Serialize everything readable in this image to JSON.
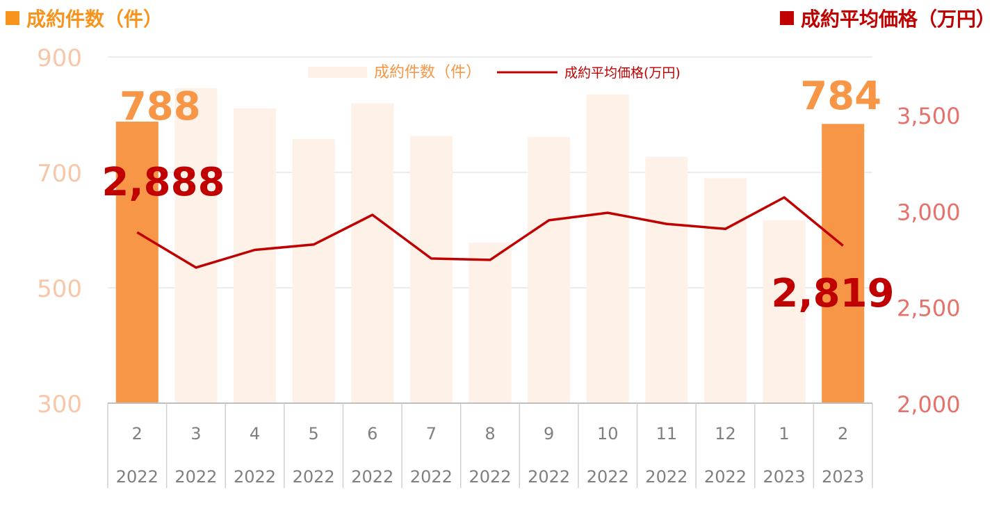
{
  "header": {
    "left_title": "成約件数（件）",
    "right_title": "成約平均価格（万円）"
  },
  "colors": {
    "bar_highlight": "#F79646",
    "bar_muted": "#FDF1E8",
    "line": "#C00000",
    "left_axis": "#F8C6A8",
    "right_axis": "#E8706A",
    "left_title": "#F7941D",
    "right_title": "#C00000",
    "right_square": "#C00000",
    "value_bar_label": "#F79646",
    "value_line_label": "#C00000",
    "category_text": "#7F7F7F",
    "grid": "#D9D9D9"
  },
  "chart_data": {
    "type": "bar+line",
    "categories": [
      "2",
      "3",
      "4",
      "5",
      "6",
      "7",
      "8",
      "9",
      "10",
      "11",
      "12",
      "1",
      "2"
    ],
    "years": [
      "2022",
      "2022",
      "2022",
      "2022",
      "2022",
      "2022",
      "2022",
      "2022",
      "2022",
      "2022",
      "2022",
      "2023",
      "2023"
    ],
    "highlight_indices": [
      0,
      12
    ],
    "series": [
      {
        "name": "成約件数（件）",
        "type": "bar",
        "axis": "left",
        "values": [
          788,
          846,
          811,
          758,
          820,
          763,
          578,
          761,
          835,
          727,
          690,
          617,
          784
        ]
      },
      {
        "name": "成約平均価格(万円)",
        "type": "line",
        "axis": "right",
        "values": [
          2888,
          2705,
          2797,
          2825,
          2979,
          2752,
          2745,
          2951,
          2990,
          2932,
          2906,
          3070,
          2819
        ]
      }
    ],
    "left_axis": {
      "min": 300,
      "max": 900,
      "ticks": [
        "900",
        "700",
        "500",
        "300"
      ],
      "tick_values": [
        900,
        700,
        500,
        300
      ]
    },
    "right_axis": {
      "min": 2000,
      "max": 3800,
      "ticks": [
        "3,500",
        "3,000",
        "2,500",
        "2,000"
      ],
      "tick_values": [
        3500,
        3000,
        2500,
        2000
      ]
    },
    "annotations": {
      "first_bar": "788",
      "last_bar": "784",
      "first_line": "2,888",
      "last_line": "2,819"
    },
    "legend": {
      "position": "top-center",
      "bar_label": "成約件数（件）",
      "line_label": "成約平均価格(万円)"
    },
    "grid": true
  }
}
